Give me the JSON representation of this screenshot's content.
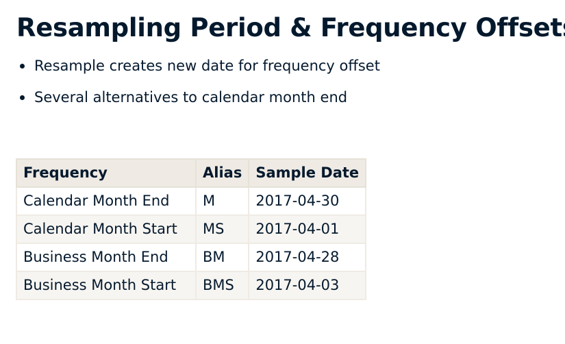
{
  "title": "Resampling Period & Frequency Offsets",
  "bullets": [
    "Resample creates new date for frequency offset",
    "Several alternatives to calendar month end"
  ],
  "table": {
    "headers": [
      "Frequency",
      "Alias",
      "Sample Date"
    ],
    "rows": [
      [
        "Calendar Month End",
        "M",
        "2017-04-30"
      ],
      [
        "Calendar Month Start",
        "MS",
        "2017-04-01"
      ],
      [
        "Business Month End",
        "BM",
        "2017-04-28"
      ],
      [
        "Business Month Start",
        "BMS",
        "2017-04-03"
      ]
    ]
  },
  "colors": {
    "text": "#05192d",
    "header_bg": "#efebe4",
    "stripe_bg": "#f7f5f1"
  }
}
